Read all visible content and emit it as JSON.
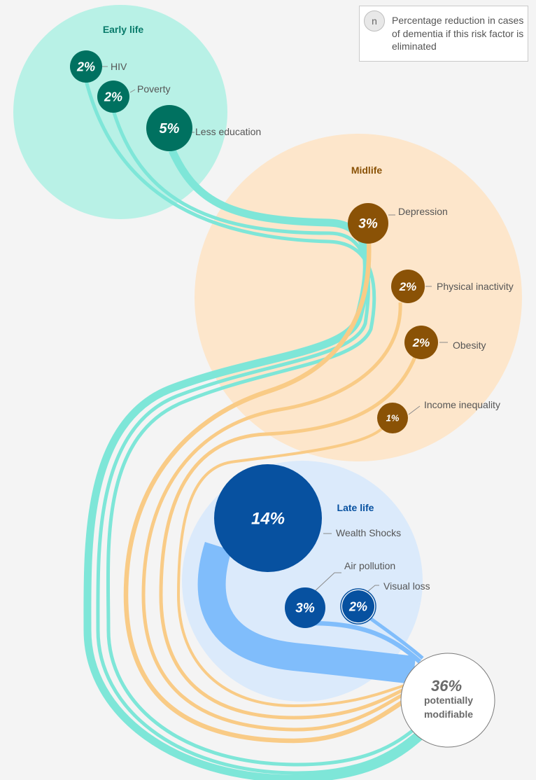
{
  "legend": {
    "symbol": "n",
    "text": "Percentage reduction in cases of dementia if this risk factor is eliminated"
  },
  "colors": {
    "early_bg": "#b8f1e6",
    "early_dark": "#007160",
    "early_flow": "#7ee6d8",
    "early_title": "#087a6a",
    "mid_bg": "#fde6cb",
    "mid_dark": "#8a5206",
    "mid_flow": "#f9cb86",
    "mid_title": "#8a5206",
    "late_bg": "#dbeafb",
    "late_dark": "#0751a0",
    "late_flow": "#80bdfb",
    "late_title": "#0751a0"
  },
  "stages": {
    "early": {
      "title": "Early life"
    },
    "mid": {
      "title": "Midlife"
    },
    "late": {
      "title": "Late life"
    }
  },
  "risk_factors": [
    {
      "id": "hiv",
      "stage": "early",
      "label": "HIV",
      "value": 2,
      "display": "2%"
    },
    {
      "id": "poverty",
      "stage": "early",
      "label": "Poverty",
      "value": 2,
      "display": "2%"
    },
    {
      "id": "less-education",
      "stage": "early",
      "label": "Less education",
      "value": 5,
      "display": "5%"
    },
    {
      "id": "depression",
      "stage": "mid",
      "label": "Depression",
      "value": 3,
      "display": "3%"
    },
    {
      "id": "physical-inactivity",
      "stage": "mid",
      "label": "Physical inactivity",
      "value": 2,
      "display": "2%"
    },
    {
      "id": "obesity",
      "stage": "mid",
      "label": "Obesity",
      "value": 2,
      "display": "2%"
    },
    {
      "id": "income-inequality",
      "stage": "mid",
      "label": "Income inequality",
      "value": 1,
      "display": "1%"
    },
    {
      "id": "wealth-shocks",
      "stage": "late",
      "label": "Wealth Shocks",
      "value": 14,
      "display": "14%"
    },
    {
      "id": "air-pollution",
      "stage": "late",
      "label": "Air pollution",
      "value": 3,
      "display": "3%"
    },
    {
      "id": "visual-loss",
      "stage": "late",
      "label": "Visual loss",
      "value": 2,
      "display": "2%"
    }
  ],
  "total": {
    "value": "36%",
    "line1": "potentially",
    "line2": "modifiable"
  }
}
